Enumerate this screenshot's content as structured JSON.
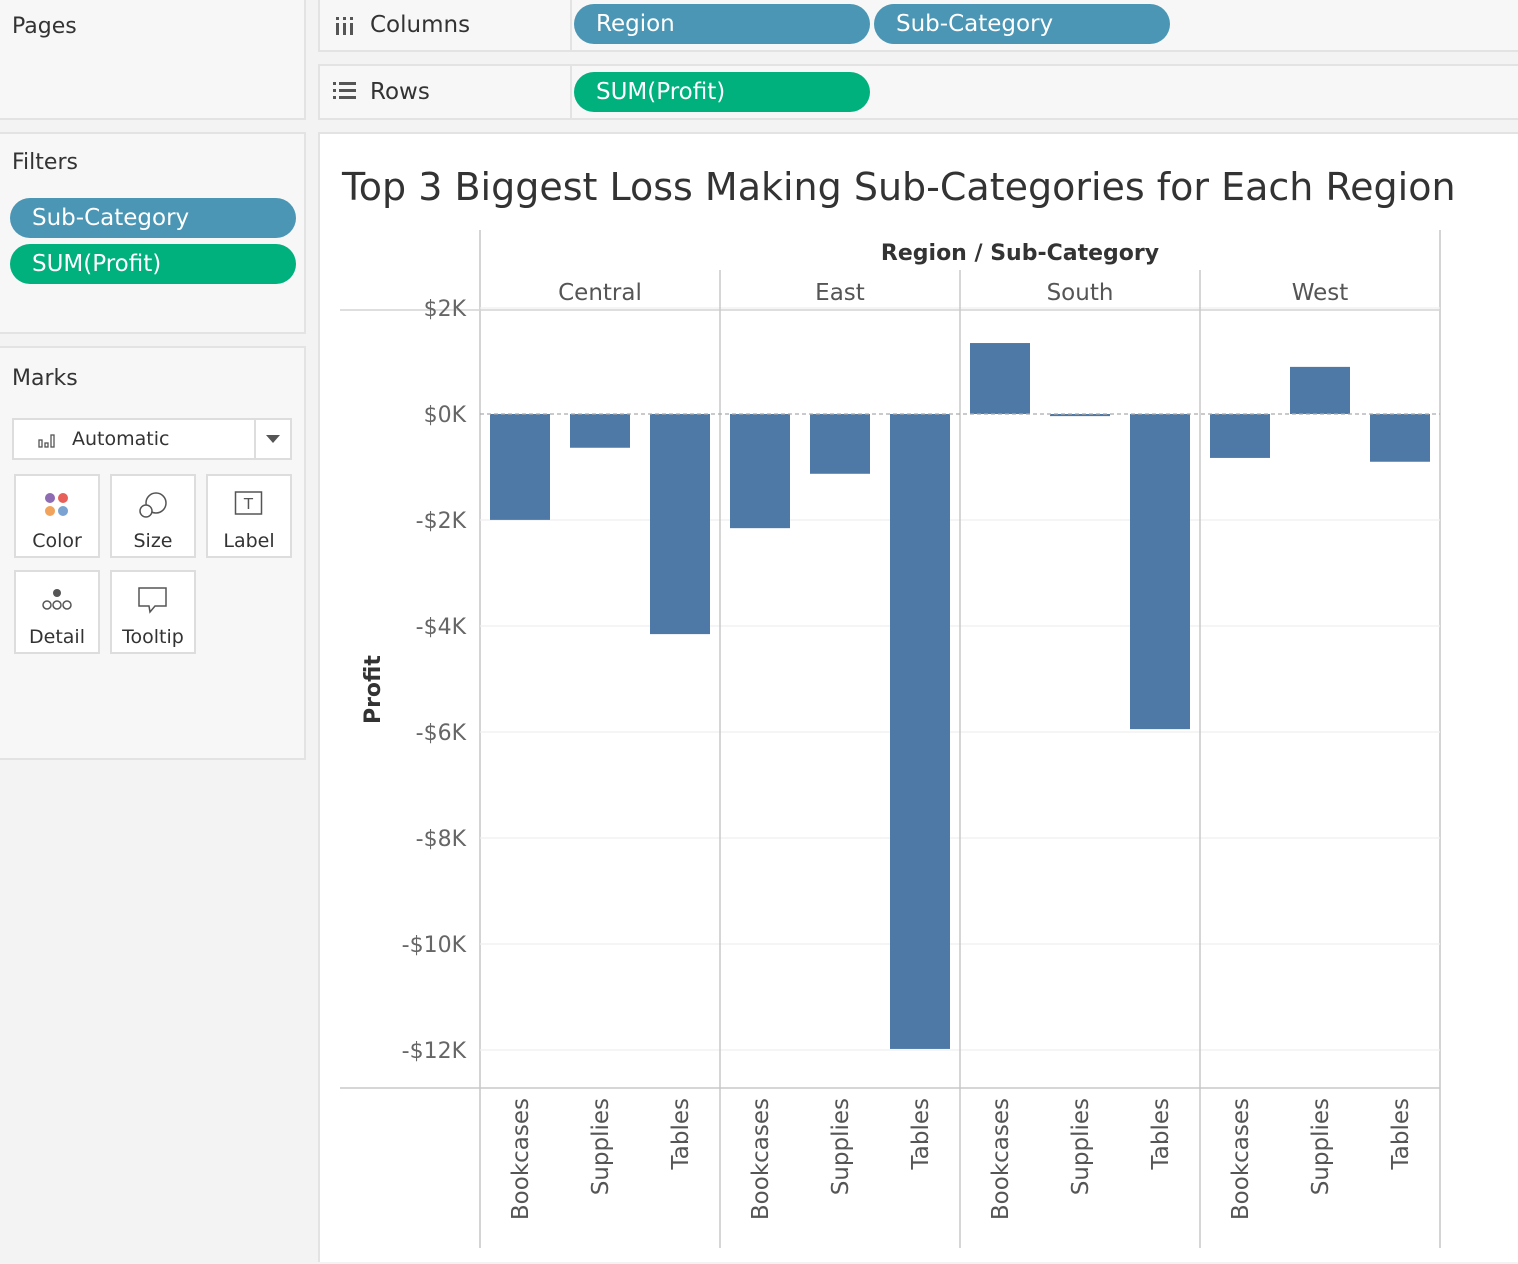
{
  "pages": {
    "title": "Pages"
  },
  "filters": {
    "title": "Filters",
    "items": [
      "Sub-Category",
      "SUM(Profit)"
    ]
  },
  "marks": {
    "title": "Marks",
    "type": "Automatic",
    "cards": [
      "Color",
      "Size",
      "Label",
      "Detail",
      "Tooltip"
    ]
  },
  "columns": {
    "label": "Columns",
    "pills": [
      "Region",
      "Sub-Category"
    ]
  },
  "rows": {
    "label": "Rows",
    "pills": [
      "SUM(Profit)"
    ]
  },
  "chart_data": {
    "type": "bar",
    "title": "Top 3 Biggest Loss Making Sub-Categories for Each Region",
    "header": "Region / Sub-Category",
    "regions": [
      "Central",
      "East",
      "South",
      "West"
    ],
    "categories": [
      "Bookcases",
      "Supplies",
      "Tables"
    ],
    "ylabel": "Profit",
    "ylim": [
      -12800,
      2200
    ],
    "yticks": [
      2000,
      0,
      -2000,
      -4000,
      -6000,
      -8000,
      -10000,
      -12000
    ],
    "ytick_labels": [
      "$2K",
      "$0K",
      "-$2K",
      "-$4K",
      "-$6K",
      "-$8K",
      "-$10K",
      "-$12K"
    ],
    "values": {
      "Central": [
        -1998,
        -637,
        -4153
      ],
      "East": [
        -2154,
        -1128,
        -11980
      ],
      "South": [
        1339,
        -40,
        -5946
      ],
      "West": [
        -829,
        889,
        -901
      ]
    },
    "bar_color": "#4e79a7"
  },
  "colors": {
    "dimension": "#4a96b4",
    "measure": "#00b07d"
  }
}
